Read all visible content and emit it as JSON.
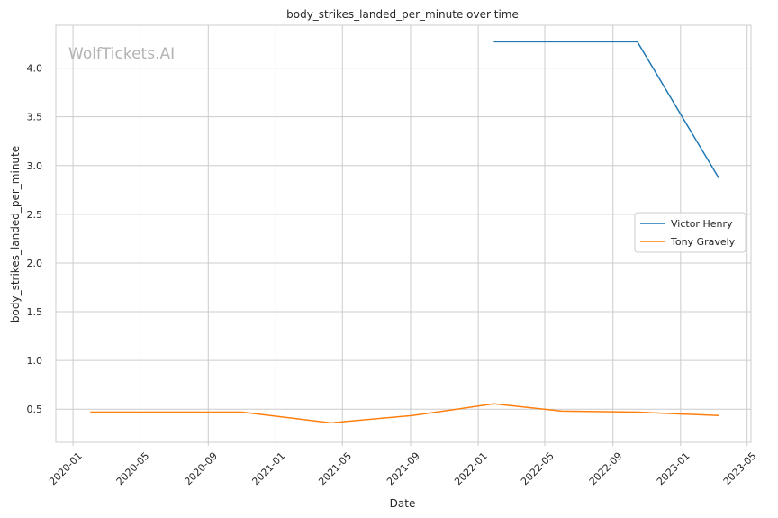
{
  "chart_data": {
    "type": "line",
    "title": "body_strikes_landed_per_minute over time",
    "xlabel": "Date",
    "ylabel": "body_strikes_landed_per_minute",
    "watermark": "WolfTickets.AI",
    "x_ticks": [
      "2020-01",
      "2020-05",
      "2020-09",
      "2021-01",
      "2021-05",
      "2021-09",
      "2022-01",
      "2022-05",
      "2022-09",
      "2023-01",
      "2023-05"
    ],
    "y_ticks": [
      "0.5",
      "1.0",
      "1.5",
      "2.0",
      "2.5",
      "3.0",
      "3.5",
      "4.0"
    ],
    "xlim": [
      "2019-12-01",
      "2023-05-08"
    ],
    "ylim": [
      0.16,
      4.44
    ],
    "grid": true,
    "legend_position": "center-right",
    "series": [
      {
        "name": "Victor Henry",
        "color": "#1f77b4",
        "points": [
          {
            "x": "2022-01-29",
            "y": 4.27
          },
          {
            "x": "2022-10-15",
            "y": 4.27
          },
          {
            "x": "2023-03-11",
            "y": 2.87
          }
        ]
      },
      {
        "name": "Tony Gravely",
        "color": "#ff7f0e",
        "points": [
          {
            "x": "2020-02-01",
            "y": 0.47
          },
          {
            "x": "2020-11-01",
            "y": 0.47
          },
          {
            "x": "2021-04-10",
            "y": 0.36
          },
          {
            "x": "2021-09-04",
            "y": 0.435
          },
          {
            "x": "2022-01-29",
            "y": 0.555
          },
          {
            "x": "2022-06-01",
            "y": 0.48
          },
          {
            "x": "2022-10-15",
            "y": 0.47
          },
          {
            "x": "2023-03-11",
            "y": 0.435
          }
        ]
      }
    ]
  }
}
